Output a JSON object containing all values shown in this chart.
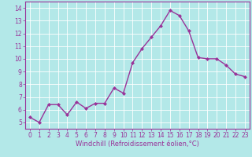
{
  "x": [
    0,
    1,
    2,
    3,
    4,
    5,
    6,
    7,
    8,
    9,
    10,
    11,
    12,
    13,
    14,
    15,
    16,
    17,
    18,
    19,
    20,
    21,
    22,
    23
  ],
  "y": [
    5.4,
    5.0,
    6.4,
    6.4,
    5.6,
    6.6,
    6.1,
    6.5,
    6.5,
    7.7,
    7.3,
    9.7,
    10.8,
    11.7,
    12.6,
    13.8,
    13.4,
    12.2,
    10.1,
    10.0,
    10.0,
    9.5,
    8.8,
    8.6
  ],
  "line_color": "#993399",
  "marker": "D",
  "marker_size": 2.0,
  "linewidth": 1.0,
  "xlabel": "Windchill (Refroidissement éolien,°C)",
  "xlim": [
    -0.5,
    23.5
  ],
  "ylim": [
    4.5,
    14.5
  ],
  "yticks": [
    5,
    6,
    7,
    8,
    9,
    10,
    11,
    12,
    13,
    14
  ],
  "xticks": [
    0,
    1,
    2,
    3,
    4,
    5,
    6,
    7,
    8,
    9,
    10,
    11,
    12,
    13,
    14,
    15,
    16,
    17,
    18,
    19,
    20,
    21,
    22,
    23
  ],
  "bg_color": "#b3e8e8",
  "grid_color": "#c8e8e8",
  "axis_color": "#993399",
  "tick_color": "#993399",
  "label_color": "#993399",
  "tick_fontsize": 5.5,
  "xlabel_fontsize": 6.0
}
